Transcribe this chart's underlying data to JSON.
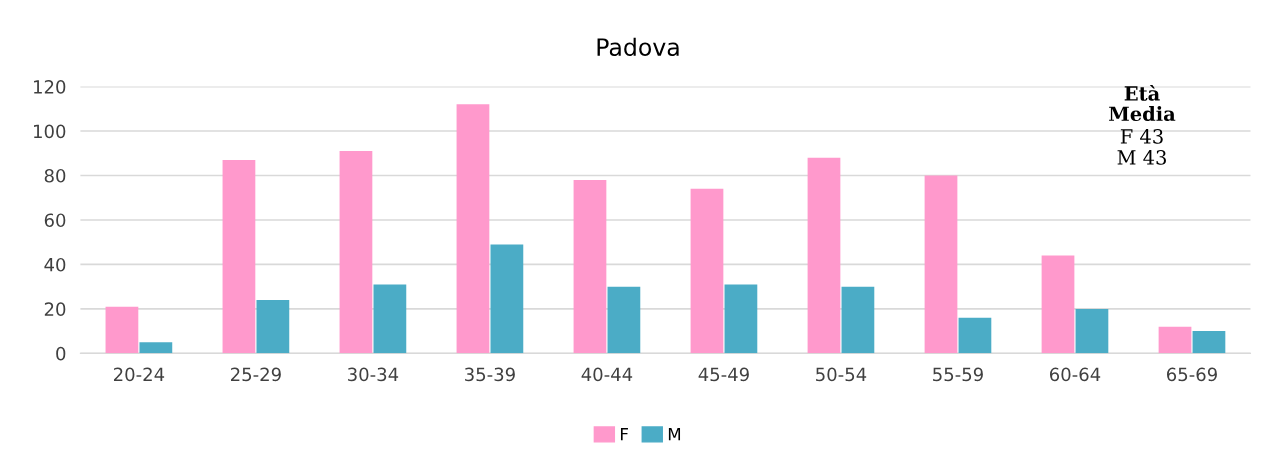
{
  "chart_data": {
    "type": "bar",
    "title": "Padova",
    "categories": [
      "20-24",
      "25-29",
      "30-34",
      "35-39",
      "40-44",
      "45-49",
      "50-54",
      "55-59",
      "60-64",
      "65-69"
    ],
    "series": [
      {
        "name": "F",
        "color": "#ff99cc",
        "values": [
          21,
          87,
          91,
          112,
          78,
          74,
          88,
          80,
          44,
          12
        ]
      },
      {
        "name": "M",
        "color": "#4bacc6",
        "values": [
          5,
          24,
          31,
          49,
          30,
          31,
          30,
          16,
          20,
          10
        ]
      }
    ],
    "ylim": [
      0,
      120
    ],
    "yticks": [
      0,
      20,
      40,
      60,
      80,
      100,
      120
    ],
    "grid": "y",
    "legend": "bottom",
    "annotations": [
      "Età Media",
      "F 43",
      "M 43"
    ]
  }
}
